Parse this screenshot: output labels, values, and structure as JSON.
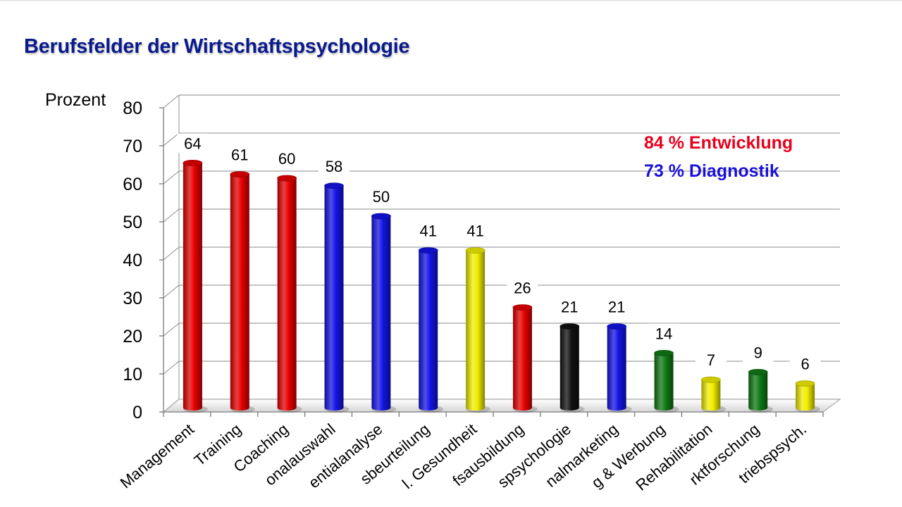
{
  "title": "Berufsfelder der Wirtschaftspsychologie",
  "legend": {
    "development": {
      "text": "84 % Entwicklung",
      "color": "#e8001c"
    },
    "diagnostics": {
      "text": "73 % Diagnostik",
      "color": "#1a10d8"
    }
  },
  "colors": {
    "red": "#e60000",
    "blue": "#1414e6",
    "yellow": "#f2ee00",
    "black": "#111111",
    "green": "#0f7a14"
  },
  "chart_data": {
    "type": "bar",
    "title": "Berufsfelder der Wirtschaftspsychologie",
    "ylabel": "Prozent",
    "xlabel": "",
    "ylim": [
      0,
      80
    ],
    "yticks": [
      0,
      10,
      20,
      30,
      40,
      50,
      60,
      70,
      80
    ],
    "grid": true,
    "categories": [
      "Management",
      "Training",
      "Coaching",
      "onalauswahl",
      "entialanalyse",
      "sbeurteilung",
      "l. Gesundheit",
      "fsausbildung",
      "spsychologie",
      "nalmarketing",
      "g & Werbung",
      "Rehabilitation",
      "rktforschung",
      "triebspsych."
    ],
    "values": [
      64,
      61,
      60,
      58,
      50,
      41,
      41,
      26,
      21,
      21,
      14,
      7,
      9,
      6
    ],
    "bar_colors": [
      "red",
      "red",
      "red",
      "blue",
      "blue",
      "blue",
      "yellow",
      "red",
      "black",
      "blue",
      "green",
      "yellow",
      "green",
      "yellow"
    ]
  }
}
